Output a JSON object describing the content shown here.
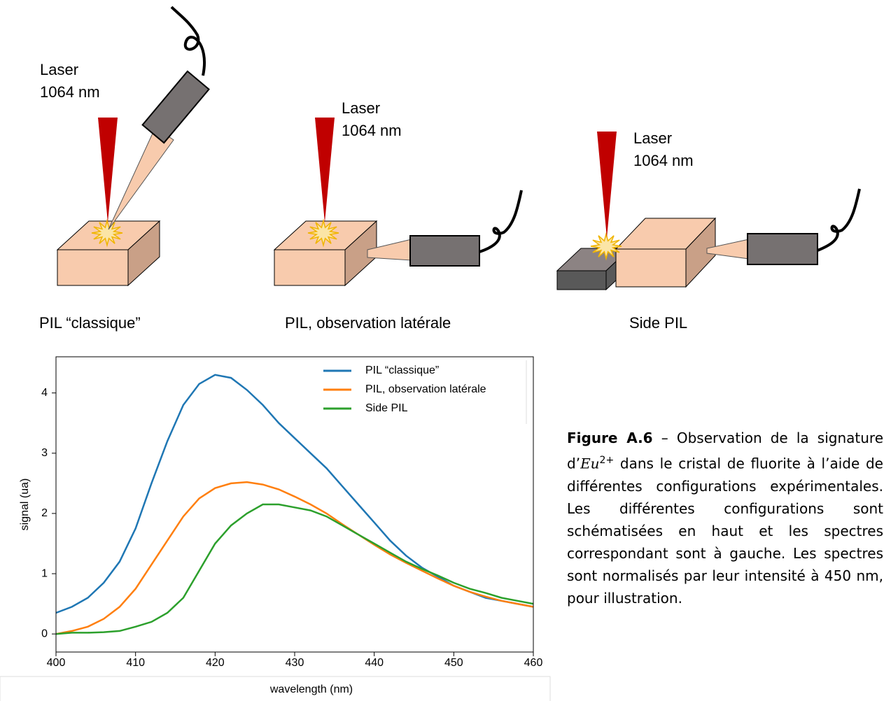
{
  "diagrams": [
    {
      "laser": "Laser",
      "wavelength": "1064 nm",
      "label": "PIL “classique”"
    },
    {
      "laser": "Laser",
      "wavelength": "1064 nm",
      "label": "PIL, observation latérale"
    },
    {
      "laser": "Laser",
      "wavelength": "1064 nm",
      "label": "Side PIL"
    }
  ],
  "chart_data": {
    "type": "line",
    "x_label": "wavelength (nm)",
    "y_label": "signal (ua)",
    "x": [
      400,
      402,
      404,
      406,
      408,
      410,
      412,
      414,
      416,
      418,
      420,
      422,
      424,
      426,
      428,
      430,
      432,
      434,
      436,
      438,
      440,
      442,
      444,
      446,
      448,
      450,
      452,
      454,
      456,
      458,
      460
    ],
    "series": [
      {
        "name": "PIL “classique”",
        "color": "#1f77b4",
        "values": [
          0.35,
          0.45,
          0.6,
          0.85,
          1.2,
          1.75,
          2.5,
          3.2,
          3.8,
          4.15,
          4.3,
          4.25,
          4.05,
          3.8,
          3.5,
          3.25,
          3.0,
          2.75,
          2.45,
          2.15,
          1.85,
          1.55,
          1.3,
          1.1,
          0.95,
          0.8,
          0.7,
          0.6,
          0.55,
          0.5,
          0.45
        ]
      },
      {
        "name": "PIL, observation latérale",
        "color": "#ff7f0e",
        "values": [
          0.0,
          0.05,
          0.12,
          0.25,
          0.45,
          0.75,
          1.15,
          1.55,
          1.95,
          2.25,
          2.42,
          2.5,
          2.52,
          2.48,
          2.4,
          2.28,
          2.15,
          2.0,
          1.82,
          1.65,
          1.48,
          1.32,
          1.18,
          1.05,
          0.92,
          0.8,
          0.7,
          0.62,
          0.55,
          0.5,
          0.45
        ]
      },
      {
        "name": "Side PIL",
        "color": "#2ca02c",
        "values": [
          0.0,
          0.02,
          0.02,
          0.03,
          0.05,
          0.12,
          0.2,
          0.35,
          0.6,
          1.05,
          1.5,
          1.8,
          2.0,
          2.15,
          2.15,
          2.1,
          2.05,
          1.95,
          1.8,
          1.65,
          1.5,
          1.35,
          1.2,
          1.08,
          0.97,
          0.85,
          0.75,
          0.68,
          0.6,
          0.55,
          0.5
        ]
      }
    ],
    "xlim": [
      400,
      460
    ],
    "xticks": [
      400,
      410,
      420,
      430,
      440,
      450,
      460
    ],
    "ylim": [
      -0.3,
      4.6
    ],
    "yticks": [
      0,
      1,
      2,
      3,
      4
    ],
    "legend": "upper right"
  },
  "caption": {
    "label": "Figure A.6",
    "text": "– Observation de la signature d’",
    "math": "Eu",
    "sup": "2+",
    "rest": " dans le cristal de fluorite à l’aide de différentes configurations expérimentales. Les différentes configurations sont schématisées en haut et les spectres correspondant sont à gauche. Les spectres sont normalisés par leur intensité à 450 nm, pour illustration."
  }
}
